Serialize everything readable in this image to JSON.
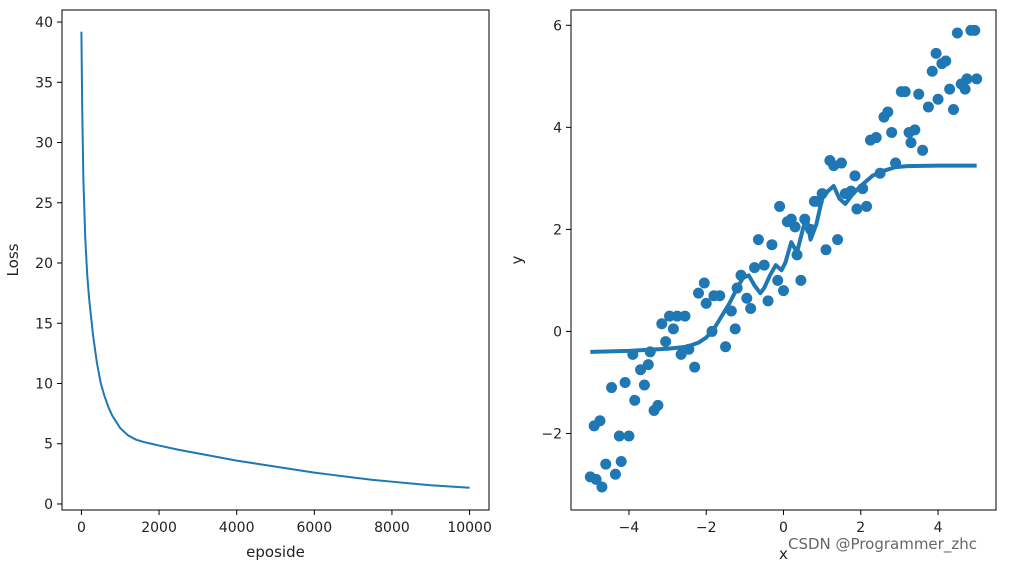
{
  "colors": {
    "series": "#1f77b4",
    "axes": "#000000",
    "text": "#222222"
  },
  "watermark": "CSDN @Programmer_zhc",
  "chart_data": [
    {
      "type": "line",
      "title": "",
      "xlabel": "eposide",
      "ylabel": "Loss",
      "xlim": [
        -500,
        10500
      ],
      "ylim": [
        -0.5,
        41
      ],
      "xticks": [
        0,
        2000,
        4000,
        6000,
        8000,
        10000
      ],
      "xtick_labels": [
        "0",
        "2000",
        "4000",
        "6000",
        "8000",
        "10000"
      ],
      "yticks": [
        0,
        5,
        10,
        15,
        20,
        25,
        30,
        35,
        40
      ],
      "ytick_labels": [
        "0",
        "5",
        "10",
        "15",
        "20",
        "25",
        "30",
        "35",
        "40"
      ],
      "grid": false,
      "series": [
        {
          "x": [
            0,
            20,
            50,
            100,
            150,
            200,
            300,
            400,
            500,
            600,
            700,
            800,
            900,
            1000,
            1200,
            1400,
            1600,
            1800,
            2000,
            2500,
            3000,
            3500,
            4000,
            4500,
            5000,
            5500,
            6000,
            6500,
            7000,
            7500,
            8000,
            8500,
            9000,
            9500,
            10000
          ],
          "y": [
            39.2,
            33,
            27,
            22,
            19,
            17,
            14,
            11.7,
            10,
            8.9,
            8.0,
            7.3,
            6.8,
            6.3,
            5.7,
            5.35,
            5.15,
            5.0,
            4.85,
            4.5,
            4.2,
            3.9,
            3.6,
            3.35,
            3.1,
            2.85,
            2.6,
            2.4,
            2.2,
            2.0,
            1.85,
            1.7,
            1.55,
            1.45,
            1.35
          ]
        }
      ]
    },
    {
      "type": "scatter",
      "title": "",
      "xlabel": "x",
      "ylabel": "y",
      "xlim": [
        -5.5,
        5.5
      ],
      "ylim": [
        -3.5,
        6.3
      ],
      "xticks": [
        -4,
        -2,
        0,
        2,
        4
      ],
      "xtick_labels": [
        "−4",
        "−2",
        "0",
        "2",
        "4"
      ],
      "yticks": [
        -2,
        0,
        2,
        4,
        6
      ],
      "ytick_labels": [
        "−2",
        "0",
        "2",
        "4",
        "6"
      ],
      "grid": false,
      "series": [
        {
          "kind": "scatter",
          "points": [
            [
              -5.0,
              -2.85
            ],
            [
              -4.9,
              -1.85
            ],
            [
              -4.85,
              -2.9
            ],
            [
              -4.75,
              -1.75
            ],
            [
              -4.7,
              -3.05
            ],
            [
              -4.6,
              -2.6
            ],
            [
              -4.45,
              -1.1
            ],
            [
              -4.35,
              -2.8
            ],
            [
              -4.25,
              -2.05
            ],
            [
              -4.2,
              -2.55
            ],
            [
              -4.1,
              -1.0
            ],
            [
              -4.0,
              -2.05
            ],
            [
              -3.9,
              -0.45
            ],
            [
              -3.85,
              -1.35
            ],
            [
              -3.7,
              -0.75
            ],
            [
              -3.6,
              -1.05
            ],
            [
              -3.5,
              -0.65
            ],
            [
              -3.45,
              -0.4
            ],
            [
              -3.35,
              -1.55
            ],
            [
              -3.25,
              -1.45
            ],
            [
              -3.15,
              0.15
            ],
            [
              -3.05,
              -0.2
            ],
            [
              -2.95,
              0.3
            ],
            [
              -2.85,
              0.05
            ],
            [
              -2.75,
              0.3
            ],
            [
              -2.65,
              -0.45
            ],
            [
              -2.55,
              0.3
            ],
            [
              -2.45,
              -0.35
            ],
            [
              -2.3,
              -0.7
            ],
            [
              -2.2,
              0.75
            ],
            [
              -2.05,
              0.95
            ],
            [
              -2.0,
              0.55
            ],
            [
              -1.85,
              0.0
            ],
            [
              -1.8,
              0.7
            ],
            [
              -1.65,
              0.7
            ],
            [
              -1.5,
              -0.3
            ],
            [
              -1.35,
              0.4
            ],
            [
              -1.25,
              0.05
            ],
            [
              -1.2,
              0.85
            ],
            [
              -1.1,
              1.1
            ],
            [
              -0.95,
              0.65
            ],
            [
              -0.85,
              0.45
            ],
            [
              -0.75,
              1.25
            ],
            [
              -0.65,
              1.8
            ],
            [
              -0.5,
              1.3
            ],
            [
              -0.4,
              0.6
            ],
            [
              -0.3,
              1.7
            ],
            [
              -0.15,
              1.0
            ],
            [
              -0.1,
              2.45
            ],
            [
              0.0,
              0.8
            ],
            [
              0.1,
              2.15
            ],
            [
              0.2,
              2.2
            ],
            [
              0.3,
              2.05
            ],
            [
              0.35,
              1.5
            ],
            [
              0.45,
              1.0
            ],
            [
              0.55,
              2.2
            ],
            [
              0.7,
              2.0
            ],
            [
              0.8,
              2.55
            ],
            [
              0.9,
              2.55
            ],
            [
              1.0,
              2.7
            ],
            [
              1.1,
              1.6
            ],
            [
              1.2,
              3.35
            ],
            [
              1.3,
              3.25
            ],
            [
              1.4,
              1.8
            ],
            [
              1.5,
              3.3
            ],
            [
              1.6,
              2.7
            ],
            [
              1.75,
              2.75
            ],
            [
              1.85,
              3.05
            ],
            [
              1.9,
              2.4
            ],
            [
              2.05,
              2.8
            ],
            [
              2.15,
              2.45
            ],
            [
              2.25,
              3.75
            ],
            [
              2.4,
              3.8
            ],
            [
              2.5,
              3.1
            ],
            [
              2.6,
              4.2
            ],
            [
              2.7,
              4.3
            ],
            [
              2.8,
              3.9
            ],
            [
              2.9,
              3.3
            ],
            [
              3.05,
              4.7
            ],
            [
              3.15,
              4.7
            ],
            [
              3.25,
              3.9
            ],
            [
              3.3,
              3.7
            ],
            [
              3.4,
              3.95
            ],
            [
              3.5,
              4.65
            ],
            [
              3.6,
              3.55
            ],
            [
              3.75,
              4.4
            ],
            [
              3.85,
              5.1
            ],
            [
              3.95,
              5.45
            ],
            [
              4.0,
              4.55
            ],
            [
              4.1,
              5.25
            ],
            [
              4.2,
              5.3
            ],
            [
              4.3,
              4.75
            ],
            [
              4.4,
              4.35
            ],
            [
              4.5,
              5.85
            ],
            [
              4.6,
              4.85
            ],
            [
              4.7,
              4.75
            ],
            [
              4.75,
              4.95
            ],
            [
              4.85,
              5.9
            ],
            [
              4.95,
              5.9
            ],
            [
              5.0,
              4.95
            ]
          ]
        },
        {
          "kind": "line",
          "points": [
            [
              -5.0,
              -0.4
            ],
            [
              -4.0,
              -0.38
            ],
            [
              -3.0,
              -0.34
            ],
            [
              -2.5,
              -0.3
            ],
            [
              -2.2,
              -0.22
            ],
            [
              -2.0,
              -0.12
            ],
            [
              -1.8,
              0.05
            ],
            [
              -1.6,
              0.3
            ],
            [
              -1.4,
              0.55
            ],
            [
              -1.2,
              0.85
            ],
            [
              -1.05,
              1.05
            ],
            [
              -0.9,
              1.1
            ],
            [
              -0.75,
              0.9
            ],
            [
              -0.6,
              0.75
            ],
            [
              -0.5,
              0.85
            ],
            [
              -0.35,
              1.1
            ],
            [
              -0.2,
              1.3
            ],
            [
              -0.05,
              1.2
            ],
            [
              0.05,
              1.35
            ],
            [
              0.2,
              1.75
            ],
            [
              0.35,
              1.55
            ],
            [
              0.5,
              2.0
            ],
            [
              0.6,
              2.25
            ],
            [
              0.7,
              1.8
            ],
            [
              0.85,
              2.1
            ],
            [
              1.0,
              2.6
            ],
            [
              1.15,
              2.75
            ],
            [
              1.3,
              2.85
            ],
            [
              1.45,
              2.6
            ],
            [
              1.6,
              2.5
            ],
            [
              1.8,
              2.7
            ],
            [
              2.0,
              2.85
            ],
            [
              2.3,
              3.05
            ],
            [
              2.6,
              3.15
            ],
            [
              2.9,
              3.22
            ],
            [
              3.2,
              3.24
            ],
            [
              4.0,
              3.25
            ],
            [
              5.0,
              3.25
            ]
          ]
        }
      ]
    }
  ]
}
